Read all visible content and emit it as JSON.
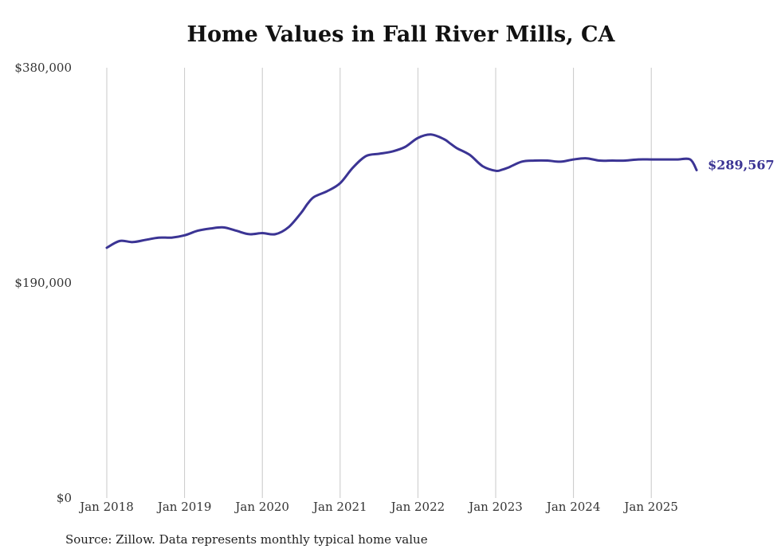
{
  "title": "Home Values in Fall River Mills, CA",
  "source": "Source: Zillow. Data represents monthly typical home value",
  "colors": {
    "line": "#3b3494",
    "grid": "#c8c8c8",
    "text": "#333333"
  },
  "chart_data": {
    "type": "line",
    "title": "Home Values in Fall River Mills, CA",
    "xlabel": "",
    "ylabel": "",
    "ylim": [
      0,
      380000
    ],
    "y_ticks": [
      {
        "value": 0,
        "label": "$0"
      },
      {
        "value": 190000,
        "label": "$190,000"
      },
      {
        "value": 380000,
        "label": "$380,000"
      }
    ],
    "x_ticks": [
      {
        "value": "2018-01",
        "label": "Jan 2018"
      },
      {
        "value": "2019-01",
        "label": "Jan 2019"
      },
      {
        "value": "2020-01",
        "label": "Jan 2020"
      },
      {
        "value": "2021-01",
        "label": "Jan 2021"
      },
      {
        "value": "2022-01",
        "label": "Jan 2022"
      },
      {
        "value": "2023-01",
        "label": "Jan 2023"
      },
      {
        "value": "2024-01",
        "label": "Jan 2024"
      },
      {
        "value": "2025-01",
        "label": "Jan 2025"
      }
    ],
    "grid": "vertical",
    "end_label": "$289,567",
    "series": [
      {
        "x": [
          "2018-01",
          "2018-03",
          "2018-05",
          "2018-07",
          "2018-09",
          "2018-11",
          "2019-01",
          "2019-03",
          "2019-05",
          "2019-07",
          "2019-09",
          "2019-11",
          "2020-01",
          "2020-03",
          "2020-05",
          "2020-07",
          "2020-08",
          "2020-09",
          "2020-11",
          "2021-01",
          "2021-03",
          "2021-05",
          "2021-07",
          "2021-09",
          "2021-11",
          "2022-01",
          "2022-03",
          "2022-05",
          "2022-06",
          "2022-07",
          "2022-09",
          "2022-11",
          "2023-01",
          "2023-02",
          "2023-03",
          "2023-05",
          "2023-07",
          "2023-09",
          "2023-11",
          "2024-01",
          "2024-03",
          "2024-05",
          "2024-07",
          "2024-09",
          "2024-11",
          "2025-01",
          "2025-03",
          "2025-05",
          "2025-07",
          "2025-08"
        ],
        "values": [
          221000,
          227000,
          226000,
          228000,
          230000,
          230000,
          232000,
          236000,
          238000,
          239000,
          236000,
          233000,
          234000,
          233000,
          239000,
          252000,
          260000,
          266000,
          271000,
          278000,
          292000,
          302000,
          304000,
          306000,
          310000,
          318000,
          321000,
          317000,
          313000,
          309000,
          303000,
          293000,
          289000,
          290000,
          292000,
          297000,
          298000,
          298000,
          297000,
          299000,
          300000,
          298000,
          298000,
          298000,
          299000,
          299000,
          299000,
          299000,
          299000,
          289567
        ]
      }
    ]
  }
}
